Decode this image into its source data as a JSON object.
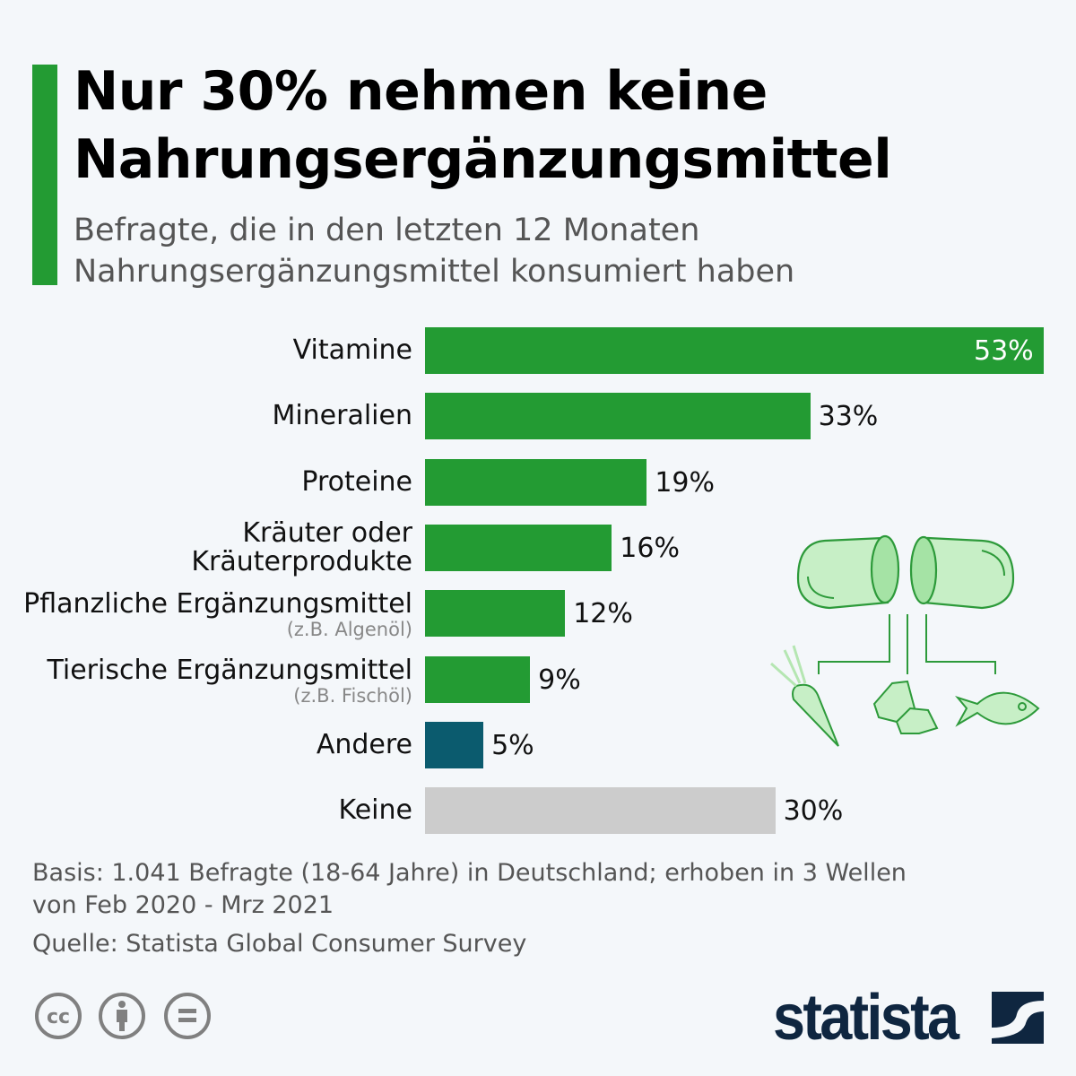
{
  "header": {
    "title_line1": "Nur 30% nehmen keine",
    "title_line2": "Nahrungsergänzungsmittel",
    "subtitle_line1": "Befragte, die in den letzten 12 Monaten",
    "subtitle_line2": "Nahrungsergänzungsmittel konsumiert haben"
  },
  "chart_data": {
    "type": "bar",
    "orientation": "horizontal",
    "categories": [
      "Vitamine",
      "Mineralien",
      "Proteine",
      "Kräuter oder Kräuterprodukte",
      "Pflanzliche Ergänzungsmittel",
      "Tierische Ergänzungsmittel",
      "Andere",
      "Keine"
    ],
    "category_lines": [
      [
        "Vitamine"
      ],
      [
        "Mineralien"
      ],
      [
        "Proteine"
      ],
      [
        "Kräuter oder",
        "Kräuterprodukte"
      ],
      [
        "Pflanzliche Ergänzungsmittel"
      ],
      [
        "Tierische Ergänzungsmittel"
      ],
      [
        "Andere"
      ],
      [
        "Keine"
      ]
    ],
    "category_notes": [
      "",
      "",
      "",
      "",
      "(z.B. Algenöl)",
      "(z.B. Fischöl)",
      "",
      ""
    ],
    "values": [
      53,
      33,
      19,
      16,
      12,
      9,
      5,
      30
    ],
    "value_labels": [
      "53%",
      "33%",
      "19%",
      "16%",
      "12%",
      "9%",
      "5%",
      "30%"
    ],
    "unit": "%",
    "colors": [
      "#239b33",
      "#239b33",
      "#239b33",
      "#239b33",
      "#239b33",
      "#239b33",
      "#0b5b6e",
      "#cccccc"
    ],
    "xlim": [
      0,
      53
    ],
    "grid": false
  },
  "footer": {
    "basis_line1": "Basis: 1.041 Befragte (18-64 Jahre) in Deutschland; erhoben in 3 Wellen",
    "basis_line2": "von Feb 2020 - Mrz 2021",
    "source": "Quelle: Statista Global Consumer Survey",
    "logo": "statista",
    "icons": [
      "creative-commons-icon",
      "attribution-icon",
      "no-derivatives-icon"
    ]
  }
}
